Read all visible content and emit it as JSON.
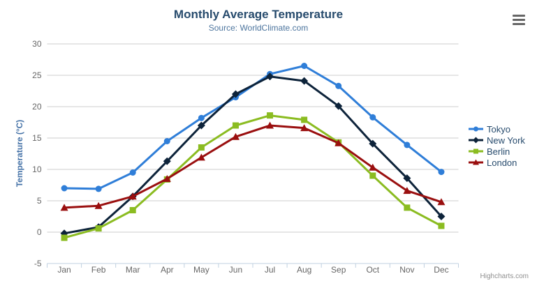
{
  "credits": "Highcharts.com",
  "icons": {
    "menu": "hamburger-icon"
  },
  "chart_data": {
    "type": "line",
    "title": "Monthly Average Temperature",
    "subtitle": "Source: WorldClimate.com",
    "xlabel": "",
    "ylabel": "Temperature (°C)",
    "categories": [
      "Jan",
      "Feb",
      "Mar",
      "Apr",
      "May",
      "Jun",
      "Jul",
      "Aug",
      "Sep",
      "Oct",
      "Nov",
      "Dec"
    ],
    "series": [
      {
        "name": "Tokyo",
        "color": "#2f7ed8",
        "marker": "circle",
        "values": [
          7.0,
          6.9,
          9.5,
          14.5,
          18.2,
          21.5,
          25.2,
          26.5,
          23.3,
          18.3,
          13.9,
          9.6
        ]
      },
      {
        "name": "New York",
        "color": "#0d233a",
        "marker": "diamond",
        "values": [
          -0.2,
          0.8,
          5.7,
          11.3,
          17.0,
          22.0,
          24.8,
          24.1,
          20.1,
          14.1,
          8.6,
          2.5
        ]
      },
      {
        "name": "Berlin",
        "color": "#8bbc21",
        "marker": "square",
        "values": [
          -0.9,
          0.6,
          3.5,
          8.4,
          13.5,
          17.0,
          18.6,
          17.9,
          14.3,
          9.0,
          3.9,
          1.0
        ]
      },
      {
        "name": "London",
        "color": "#9a0f0f",
        "marker": "triangle",
        "values": [
          3.9,
          4.2,
          5.7,
          8.5,
          11.9,
          15.2,
          17.0,
          16.6,
          14.2,
          10.3,
          6.6,
          4.8
        ]
      }
    ],
    "ylim": [
      -5,
      30
    ],
    "ytick_interval": 5,
    "grid": true,
    "legend_position": "right",
    "axis_colors": {
      "grid_line": "#cccccc",
      "axis_line": "#c0d0e0",
      "tick_label": "#666666",
      "axis_title": "#4572a7"
    }
  }
}
